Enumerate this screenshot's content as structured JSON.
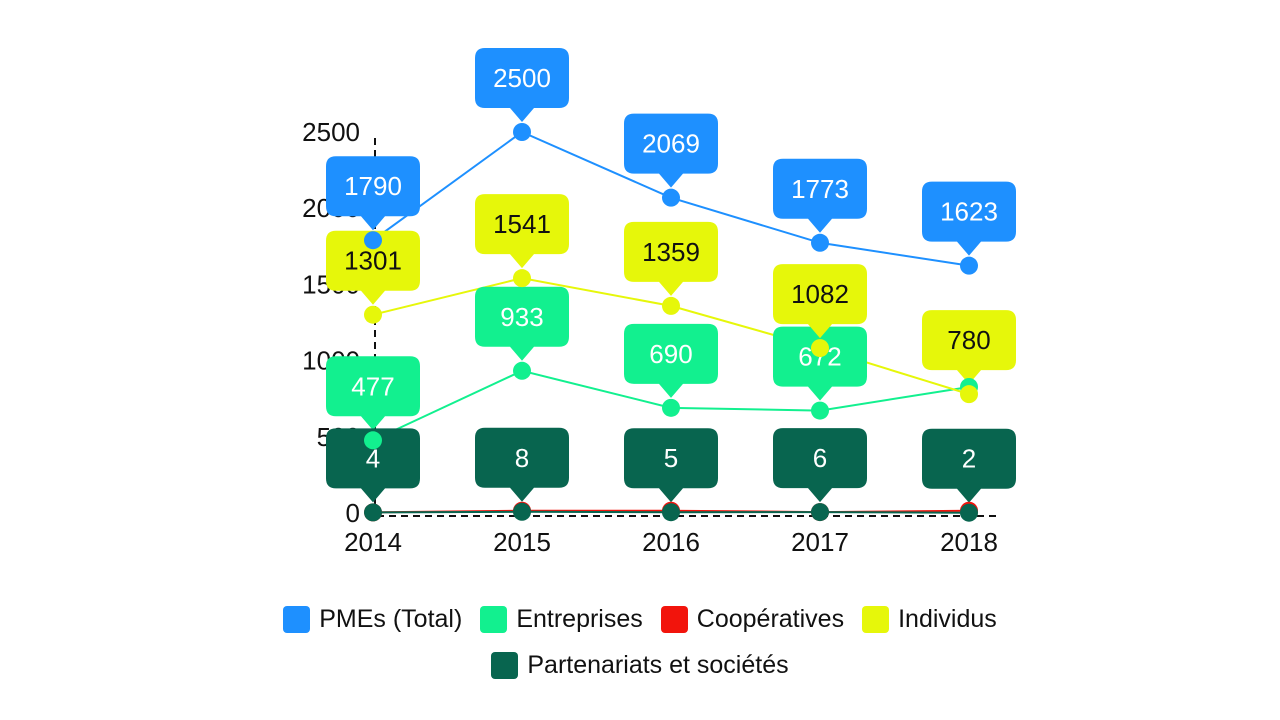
{
  "chart_data": {
    "type": "line",
    "x": [
      "2014",
      "2015",
      "2016",
      "2017",
      "2018"
    ],
    "ylim": [
      0,
      2500
    ],
    "yticks": [
      "0",
      "500",
      "1000",
      "1500",
      "2000",
      "2500"
    ],
    "grid": false,
    "legend_position": "bottom",
    "series": [
      {
        "name": "PMEs (Total)",
        "color": "#1E90FF",
        "text_color": "#ffffff",
        "values": [
          1790,
          2500,
          2069,
          1773,
          1623
        ],
        "labels": [
          "1790",
          "2500",
          "2069",
          "1773",
          "1623"
        ]
      },
      {
        "name": "Entreprises",
        "color": "#12F08F",
        "text_color": "#ffffff",
        "values": [
          477,
          933,
          690,
          672,
          827
        ],
        "labels": [
          "477",
          "933",
          "690",
          "672",
          ""
        ]
      },
      {
        "name": "Coopératives",
        "color": "#F2140C",
        "text_color": "#ffffff",
        "values": [
          4,
          15,
          15,
          6,
          15
        ],
        "labels": [
          "",
          "",
          "",
          "",
          ""
        ]
      },
      {
        "name": "Individus",
        "color": "#E6F70A",
        "text_color": "#111111",
        "values": [
          1301,
          1541,
          1359,
          1082,
          780
        ],
        "labels": [
          "1301",
          "1541",
          "1359",
          "1082",
          "780"
        ]
      },
      {
        "name": "Partenariats et sociétés",
        "color": "#08654F",
        "text_color": "#ffffff",
        "values": [
          4,
          8,
          5,
          6,
          2
        ],
        "labels": [
          "4",
          "8",
          "5",
          "6",
          "2"
        ]
      }
    ]
  },
  "legend": {
    "row1": [
      "PMEs (Total)",
      "Entreprises",
      "Coopératives",
      "Individus"
    ],
    "row2": [
      "Partenariats et sociétés"
    ]
  }
}
